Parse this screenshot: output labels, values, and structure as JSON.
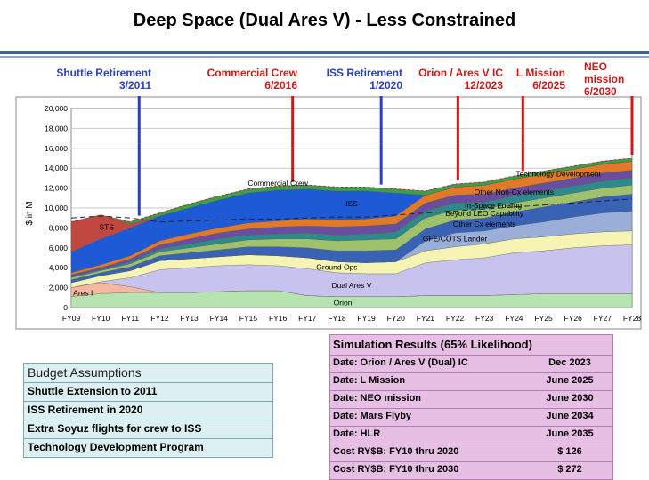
{
  "title": "Deep Space (Dual Ares V) - Less Constrained",
  "milestones": [
    {
      "label": "Shuttle Retirement",
      "date": "3/2011",
      "color": "#2b3fc4",
      "x_year": 2011.3
    },
    {
      "label": "Commercial Crew",
      "date": "6/2016",
      "color": "#d01818",
      "x_year": 2016.5
    },
    {
      "label": "ISS Retirement",
      "date": "1/2020",
      "color": "#2b3fc4",
      "x_year": 2019.5
    },
    {
      "label": "Orion / Ares V IC",
      "date": "12/2023",
      "color": "#d01818",
      "x_year": 2022.1
    },
    {
      "label": "L Mission",
      "date": "6/2025",
      "color": "#d01818",
      "x_year": 2024.3
    },
    {
      "label": "NEO mission",
      "date": "6/2030",
      "color": "#d01818",
      "x_year": 2028.0
    }
  ],
  "chart_data": {
    "type": "area",
    "stacked": true,
    "ylabel": "$ in M",
    "ylim": [
      0,
      20000
    ],
    "yticks": [
      "0",
      "2,000",
      "4,000",
      "6,000",
      "8,000",
      "10,000",
      "12,000",
      "14,000",
      "16,000",
      "18,000",
      "20,000"
    ],
    "categories": [
      "FY09",
      "FY10",
      "FY11",
      "FY12",
      "FY13",
      "FY14",
      "FY15",
      "FY16",
      "FY17",
      "FY18",
      "FY19",
      "FY20",
      "FY21",
      "FY22",
      "FY23",
      "FY24",
      "FY25",
      "FY26",
      "FY27",
      "FY28"
    ],
    "series": [
      {
        "name": "Orion",
        "color": "#b6e3b0",
        "values": [
          1100,
          1400,
          1500,
          1500,
          1500,
          1600,
          1700,
          1700,
          1200,
          1100,
          1100,
          1100,
          1200,
          1200,
          1200,
          1300,
          1400,
          1400,
          1400,
          1400
        ]
      },
      {
        "name": "Ares I",
        "color": "#f4b8a0",
        "values": [
          900,
          1100,
          600,
          0,
          0,
          0,
          0,
          0,
          0,
          0,
          0,
          0,
          0,
          0,
          0,
          0,
          0,
          0,
          0,
          0
        ]
      },
      {
        "name": "Dual Ares V",
        "color": "#c7c3ee",
        "values": [
          0,
          100,
          900,
          2300,
          2500,
          2600,
          2600,
          2500,
          2700,
          2400,
          2300,
          2300,
          3300,
          3600,
          3800,
          4200,
          4300,
          4600,
          4800,
          4900
        ]
      },
      {
        "name": "Ground Ops",
        "color": "#f5f4b3",
        "values": [
          500,
          600,
          700,
          900,
          900,
          900,
          1000,
          1000,
          1100,
          1100,
          1100,
          1200,
          1200,
          1300,
          1400,
          1400,
          1400,
          1400,
          1400,
          1400
        ]
      },
      {
        "name": "GFE/COTS Lander",
        "color": "#9aaed8",
        "values": [
          0,
          0,
          0,
          0,
          0,
          0,
          0,
          0,
          0,
          0,
          0,
          0,
          1000,
          1400,
          1300,
          1300,
          1500,
          1700,
          1900,
          2000
        ]
      },
      {
        "name": "Other Cx elements",
        "color": "#3a62b4",
        "values": [
          300,
          300,
          400,
          500,
          600,
          700,
          800,
          900,
          1000,
          1100,
          1200,
          1200,
          1200,
          1300,
          1300,
          1400,
          1500,
          1500,
          1600,
          1700
        ]
      },
      {
        "name": "Beyond LEO Capability",
        "color": "#9ec26b",
        "values": [
          200,
          200,
          300,
          400,
          500,
          600,
          700,
          800,
          900,
          1000,
          1100,
          1100,
          1100,
          1000,
          900,
          900,
          900,
          900,
          900,
          900
        ]
      },
      {
        "name": "In-Space Fueling",
        "color": "#2e8a8a",
        "values": [
          100,
          100,
          200,
          300,
          400,
          500,
          500,
          500,
          600,
          600,
          600,
          700,
          700,
          700,
          700,
          700,
          700,
          700,
          700,
          700
        ]
      },
      {
        "name": "Other Non-Cx elements",
        "color": "#6a4e9e",
        "values": [
          200,
          200,
          300,
          400,
          500,
          600,
          600,
          700,
          700,
          800,
          800,
          800,
          800,
          800,
          800,
          800,
          800,
          800,
          800,
          800
        ]
      },
      {
        "name": "Technology Development",
        "color": "#e07a28",
        "values": [
          200,
          300,
          300,
          400,
          500,
          500,
          600,
          600,
          700,
          700,
          700,
          800,
          800,
          800,
          900,
          900,
          900,
          900,
          900,
          900
        ]
      },
      {
        "name": "ISS",
        "color": "#1f5ad6",
        "values": [
          2100,
          2600,
          2800,
          2500,
          2600,
          2800,
          3000,
          3100,
          3000,
          2900,
          2800,
          2300,
          0,
          0,
          0,
          0,
          0,
          0,
          0,
          0
        ]
      },
      {
        "name": "STS",
        "color": "#c04840",
        "values": [
          3000,
          2400,
          400,
          0,
          0,
          0,
          0,
          0,
          0,
          0,
          0,
          0,
          0,
          0,
          0,
          0,
          0,
          0,
          0,
          0
        ]
      },
      {
        "name": "Commercial Crew",
        "color": "#3aa04a",
        "values": [
          0,
          0,
          200,
          300,
          400,
          400,
          400,
          400,
          400,
          400,
          400,
          400,
          400,
          300,
          300,
          300,
          300,
          300,
          300,
          300
        ]
      }
    ],
    "legend": "inline",
    "grid": true
  },
  "budget": {
    "header": "Budget Assumptions",
    "rows": [
      "Shuttle Extension to 2011",
      "ISS Retirement in 2020",
      "Extra Soyuz flights for crew to ISS",
      "Technology Development Program"
    ]
  },
  "simulation": {
    "header": "Simulation Results (65% Likelihood)",
    "rows": [
      {
        "label": "Date: Orion  / Ares V (Dual) IC",
        "value": "Dec 2023"
      },
      {
        "label": "Date: L Mission",
        "value": "June 2025"
      },
      {
        "label": "Date: NEO mission",
        "value": "June 2030"
      },
      {
        "label": "Date: Mars Flyby",
        "value": "June 2034"
      },
      {
        "label": "Date: HLR",
        "value": "June 2035"
      },
      {
        "label": "Cost RY$B: FY10 thru  2020",
        "value": "$ 126"
      },
      {
        "label": "Cost RY$B: FY10 thru  2030",
        "value": "$ 272"
      }
    ]
  }
}
